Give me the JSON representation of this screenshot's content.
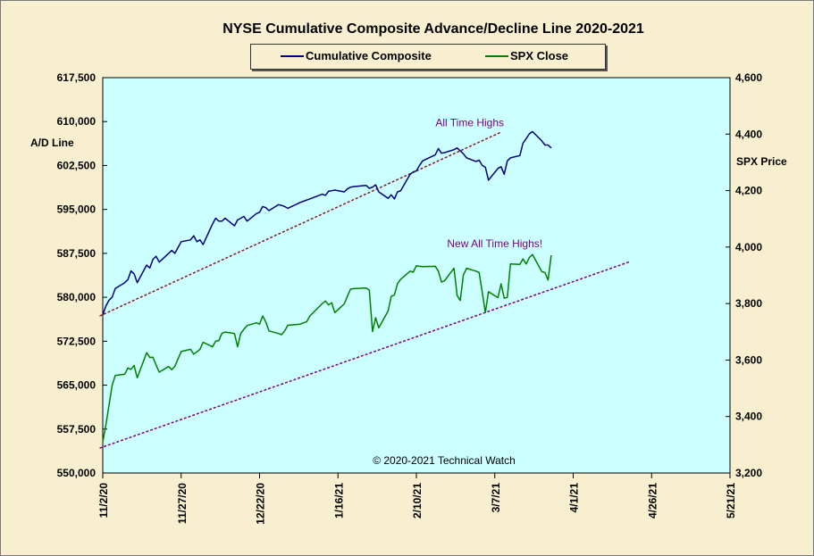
{
  "chart_data": {
    "type": "line",
    "title": "NYSE Cumulative  Composite Advance/Decline  Line 2020-2021",
    "ylabel_left": "A/D Line",
    "ylabel_right": "SPX Price",
    "copyright": "© 2020-2021  Technical Watch",
    "ylim_left": [
      550000,
      617500
    ],
    "ylim_right": [
      3200,
      4600
    ],
    "left_ticks": [
      "617,500",
      "610,000",
      "602,500",
      "595,000",
      "587,500",
      "580,000",
      "572,500",
      "565,000",
      "557,500",
      "550,000"
    ],
    "right_ticks": [
      "4,600",
      "4,400",
      "4,200",
      "4,000",
      "3,800",
      "3,600",
      "3,400",
      "3,200"
    ],
    "x_ticks": [
      "11/2/20",
      "11/27/20",
      "12/22/20",
      "1/16/21",
      "2/10/21",
      "3/7/21",
      "4/1/21",
      "4/26/21",
      "5/21/21"
    ],
    "x_range_days": [
      0,
      200
    ],
    "x_start_date": "2020-11-02",
    "series": [
      {
        "name": "Cumulative Composite",
        "axis": "left",
        "color": "#000080",
        "x": [
          0,
          1,
          2,
          3,
          4,
          7,
          8,
          9,
          10,
          11,
          14,
          15,
          16,
          17,
          18,
          21,
          22,
          23,
          25,
          28,
          29,
          30,
          31,
          32,
          35,
          36,
          37,
          38,
          39,
          42,
          43,
          44,
          45,
          46,
          49,
          50,
          51,
          52,
          53,
          56,
          57,
          58,
          59,
          63,
          64,
          65,
          66,
          70,
          71,
          72,
          73,
          74,
          77,
          78,
          79,
          80,
          84,
          85,
          86,
          87,
          88,
          91,
          92,
          93,
          94,
          95,
          98,
          99,
          100,
          101,
          102,
          106,
          107,
          108,
          109,
          112,
          113,
          114,
          115,
          116,
          119,
          120,
          121,
          122,
          123,
          126,
          127,
          128,
          129,
          130,
          133,
          134,
          135,
          136,
          137,
          140,
          141,
          142,
          143
        ],
        "y": [
          577000,
          578500,
          579500,
          580000,
          581500,
          582500,
          583000,
          584500,
          584000,
          582500,
          585500,
          585000,
          586500,
          587000,
          586000,
          587500,
          588000,
          587500,
          589500,
          589800,
          590500,
          589500,
          589800,
          589000,
          592500,
          593500,
          593000,
          593000,
          593500,
          592200,
          593200,
          593500,
          593800,
          593000,
          594300,
          594500,
          595500,
          595300,
          594800,
          595800,
          595700,
          595500,
          595200,
          596200,
          596400,
          596600,
          596800,
          597600,
          597400,
          598100,
          598200,
          598300,
          598000,
          598500,
          598800,
          598900,
          599100,
          598600,
          598800,
          599200,
          598000,
          596900,
          597500,
          596800,
          598000,
          598200,
          601000,
          601400,
          601600,
          602500,
          603300,
          604300,
          605400,
          604600,
          604700,
          605200,
          605500,
          605000,
          604500,
          603800,
          603200,
          603400,
          602500,
          602200,
          600000,
          602000,
          602300,
          601000,
          603300,
          603800,
          604200,
          606300,
          607100,
          607900,
          608300,
          606700,
          606000,
          606000,
          605500
        ]
      },
      {
        "name": "SPX Close",
        "axis": "right",
        "color": "#008000",
        "x": [
          0,
          1,
          2,
          3,
          4,
          7,
          8,
          9,
          10,
          11,
          14,
          15,
          16,
          17,
          18,
          21,
          22,
          23,
          25,
          28,
          29,
          30,
          31,
          32,
          35,
          36,
          37,
          38,
          39,
          42,
          43,
          44,
          45,
          46,
          49,
          50,
          51,
          52,
          53,
          56,
          57,
          58,
          59,
          63,
          64,
          65,
          66,
          70,
          71,
          72,
          73,
          74,
          77,
          78,
          79,
          80,
          84,
          85,
          86,
          87,
          88,
          91,
          92,
          93,
          94,
          95,
          98,
          99,
          100,
          101,
          102,
          106,
          107,
          108,
          109,
          112,
          113,
          114,
          115,
          116,
          119,
          120,
          121,
          122,
          123,
          126,
          127,
          128,
          129,
          130,
          133,
          134,
          135,
          136,
          137,
          140,
          141,
          142,
          143
        ],
        "y": [
          3310,
          3370,
          3440,
          3510,
          3545,
          3550,
          3572,
          3567,
          3581,
          3537,
          3626,
          3609,
          3610,
          3582,
          3557,
          3577,
          3566,
          3578,
          3630,
          3638,
          3621,
          3629,
          3638,
          3663,
          3647,
          3667,
          3669,
          3695,
          3699,
          3694,
          3647,
          3694,
          3709,
          3722,
          3732,
          3727,
          3756,
          3735,
          3703,
          3694,
          3690,
          3703,
          3723,
          3727,
          3732,
          3735,
          3756,
          3800,
          3809,
          3795,
          3803,
          3768,
          3799,
          3826,
          3851,
          3853,
          3855,
          3848,
          3701,
          3750,
          3714,
          3774,
          3826,
          3830,
          3871,
          3886,
          3915,
          3911,
          3934,
          3932,
          3931,
          3932,
          3915,
          3876,
          3881,
          3925,
          3829,
          3811,
          3901,
          3925,
          3915,
          3910,
          3841,
          3768,
          3842,
          3821,
          3870,
          3819,
          3822,
          3940,
          3939,
          3958,
          3940,
          3963,
          3974,
          3913,
          3910,
          3883,
          3971
        ]
      }
    ],
    "trendlines": [
      {
        "axis": "left",
        "x": [
          -1,
          127
        ],
        "y": [
          576800,
          608200
        ],
        "color": "#8b1a2a"
      },
      {
        "axis": "right",
        "x": [
          -1,
          168
        ],
        "y": [
          3288,
          3948
        ],
        "color": "#800080"
      }
    ],
    "annotations": [
      {
        "text": "All Time Highs",
        "axis": "left",
        "x": 117,
        "y": 609200,
        "color": "#800080"
      },
      {
        "text": "New All Time Highs!",
        "axis": "right",
        "x": 125,
        "y": 4000,
        "color": "#800080"
      }
    ]
  }
}
